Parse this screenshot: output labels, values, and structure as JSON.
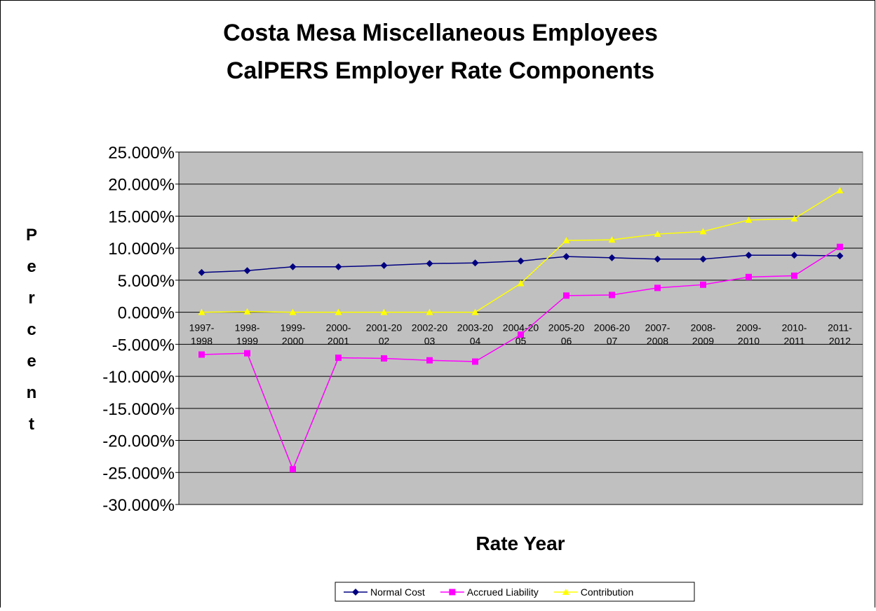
{
  "chart_data": {
    "type": "line",
    "title": [
      "Costa Mesa Miscellaneous  Employees",
      "CalPERS Employer Rate Components"
    ],
    "x_label": "Rate Year",
    "y_label": "Percent",
    "categories": [
      [
        "1997-",
        "1998"
      ],
      [
        "1998-",
        "1999"
      ],
      [
        "1999-",
        "2000"
      ],
      [
        "2000-",
        "2001"
      ],
      [
        "2001-20",
        "02"
      ],
      [
        "2002-20",
        "03"
      ],
      [
        "2003-20",
        "04"
      ],
      [
        "2004-20",
        "05"
      ],
      [
        "2005-20",
        "06"
      ],
      [
        "2006-20",
        "07"
      ],
      [
        "2007-",
        "2008"
      ],
      [
        "2008-",
        "2009"
      ],
      [
        "2009-",
        "2010"
      ],
      [
        "2010-",
        "2011"
      ],
      [
        "2011-",
        "2012"
      ]
    ],
    "series": [
      {
        "name": "Normal Cost",
        "color": "#000080",
        "marker": "diamond",
        "values": [
          6.2,
          6.5,
          7.1,
          7.1,
          7.3,
          7.6,
          7.7,
          8.0,
          8.7,
          8.5,
          8.3,
          8.3,
          8.9,
          8.9,
          8.8
        ]
      },
      {
        "name": "Accrued Liability",
        "color": "#ff00ff",
        "marker": "square",
        "values": [
          -6.6,
          -6.4,
          -24.5,
          -7.1,
          -7.2,
          -7.5,
          -7.7,
          -3.5,
          2.6,
          2.7,
          3.8,
          4.3,
          5.5,
          5.7,
          10.2
        ]
      },
      {
        "name": "Contribution",
        "color": "#ffff00",
        "marker": "triangle",
        "values": [
          0,
          0.1,
          0,
          0,
          0,
          0,
          0,
          4.5,
          11.2,
          11.3,
          12.2,
          12.6,
          14.4,
          14.6,
          19.0
        ]
      }
    ],
    "ylim": [
      -30,
      25
    ],
    "yticks": [
      {
        "value": -30,
        "label": "-30.000%"
      },
      {
        "value": -25,
        "label": "-25.000%"
      },
      {
        "value": -20,
        "label": "-20.000%"
      },
      {
        "value": -15,
        "label": "-15.000%"
      },
      {
        "value": -10,
        "label": "-10.000%"
      },
      {
        "value": -5,
        "label": "-5.000%"
      },
      {
        "value": 0,
        "label": "0.000%"
      },
      {
        "value": 5,
        "label": "5.000%"
      },
      {
        "value": 10,
        "label": "10.000%"
      },
      {
        "value": 15,
        "label": "15.000%"
      },
      {
        "value": 20,
        "label": "20.000%"
      },
      {
        "value": 25,
        "label": "25.000%"
      }
    ],
    "grid": true,
    "plot_background": "#c0c0c0",
    "legend": "bottom"
  }
}
